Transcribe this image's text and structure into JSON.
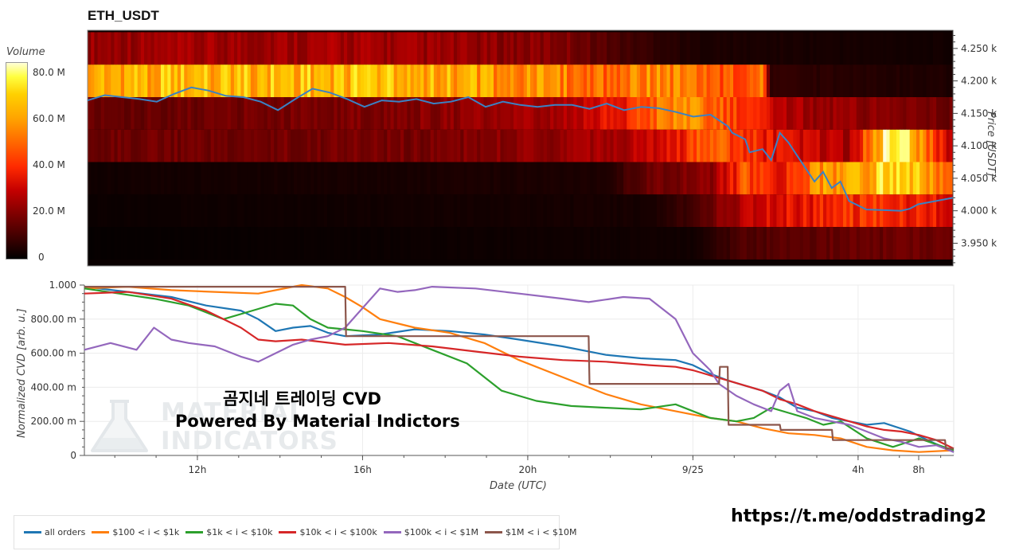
{
  "header": {
    "title": "ETH_USDT"
  },
  "colorbar": {
    "title": "Volume",
    "ticks": [
      {
        "label": "80.0 M",
        "value": 80
      },
      {
        "label": "60.0 M",
        "value": 60
      },
      {
        "label": "40.0 M",
        "value": 40
      },
      {
        "label": "20.0 M",
        "value": 20
      },
      {
        "label": "0",
        "value": 0
      }
    ]
  },
  "overlay": {
    "line1": "곰지네 트레이딩 CVD",
    "line2": "Powered By Material Indictors",
    "watermark1": "MATERIAL",
    "watermark2": "INDICATORS",
    "url": "https://t.me/oddstrading2"
  },
  "chart_data": [
    {
      "type": "heatmap",
      "title": "ETH_USDT",
      "ylabel": "Price [USDT]",
      "y_ticks": [
        "4.250 k",
        "4.200 k",
        "4.150 k",
        "4.100 k",
        "4.050 k",
        "4.000 k",
        "3.950 k"
      ],
      "y_tick_values": [
        4250,
        4200,
        4150,
        4100,
        4050,
        4000,
        3950
      ],
      "ylim": [
        3915,
        4278
      ],
      "price_bands": [
        {
          "low": 4225,
          "high": 4275,
          "intensity": [
            [
              0,
              0.28
            ],
            [
              0.3,
              0.3
            ],
            [
              0.55,
              0.24
            ],
            [
              0.62,
              0.12
            ],
            [
              0.7,
              0.05
            ],
            [
              1,
              0.03
            ]
          ]
        },
        {
          "low": 4175,
          "high": 4225,
          "intensity": [
            [
              0,
              0.78
            ],
            [
              0.35,
              0.82
            ],
            [
              0.5,
              0.7
            ],
            [
              0.6,
              0.62
            ],
            [
              0.65,
              0.7
            ],
            [
              0.75,
              0.55
            ],
            [
              0.78,
              0.62
            ],
            [
              0.79,
              0.08
            ],
            [
              1,
              0.05
            ]
          ]
        },
        {
          "low": 4125,
          "high": 4175,
          "intensity": [
            [
              0,
              0.18
            ],
            [
              0.4,
              0.25
            ],
            [
              0.55,
              0.3
            ],
            [
              0.62,
              0.45
            ],
            [
              0.68,
              0.7
            ],
            [
              0.72,
              0.6
            ],
            [
              0.78,
              0.4
            ],
            [
              0.82,
              0.3
            ],
            [
              1,
              0.2
            ]
          ]
        },
        {
          "low": 4075,
          "high": 4125,
          "intensity": [
            [
              0,
              0.2
            ],
            [
              0.4,
              0.22
            ],
            [
              0.62,
              0.3
            ],
            [
              0.68,
              0.42
            ],
            [
              0.72,
              0.6
            ],
            [
              0.76,
              0.5
            ],
            [
              0.8,
              0.4
            ],
            [
              0.88,
              0.3
            ],
            [
              0.92,
              0.9
            ],
            [
              0.95,
              0.86
            ],
            [
              1,
              0.3
            ]
          ]
        },
        {
          "low": 4025,
          "high": 4075,
          "intensity": [
            [
              0,
              0.03
            ],
            [
              0.6,
              0.05
            ],
            [
              0.65,
              0.2
            ],
            [
              0.72,
              0.25
            ],
            [
              0.76,
              0.55
            ],
            [
              0.8,
              0.4
            ],
            [
              0.85,
              0.72
            ],
            [
              0.9,
              0.76
            ],
            [
              0.93,
              0.92
            ],
            [
              0.96,
              0.82
            ],
            [
              1,
              0.5
            ]
          ]
        },
        {
          "low": 3975,
          "high": 4025,
          "intensity": [
            [
              0,
              0.02
            ],
            [
              0.65,
              0.04
            ],
            [
              0.7,
              0.12
            ],
            [
              0.76,
              0.35
            ],
            [
              0.8,
              0.4
            ],
            [
              0.85,
              0.45
            ],
            [
              0.9,
              0.5
            ],
            [
              0.95,
              0.45
            ],
            [
              1,
              0.4
            ]
          ]
        },
        {
          "low": 3925,
          "high": 3975,
          "intensity": [
            [
              0,
              0.01
            ],
            [
              0.7,
              0.03
            ],
            [
              0.76,
              0.14
            ],
            [
              0.85,
              0.18
            ],
            [
              0.95,
              0.2
            ],
            [
              1,
              0.18
            ]
          ]
        }
      ],
      "price_line": {
        "name": "price",
        "t": [
          0,
          0.02,
          0.04,
          0.06,
          0.08,
          0.1,
          0.12,
          0.14,
          0.16,
          0.18,
          0.2,
          0.22,
          0.24,
          0.26,
          0.28,
          0.3,
          0.32,
          0.34,
          0.36,
          0.38,
          0.4,
          0.42,
          0.44,
          0.46,
          0.48,
          0.5,
          0.52,
          0.54,
          0.56,
          0.58,
          0.6,
          0.62,
          0.64,
          0.66,
          0.68,
          0.7,
          0.72,
          0.74,
          0.745,
          0.76,
          0.765,
          0.78,
          0.79,
          0.8,
          0.81,
          0.82,
          0.83,
          0.84,
          0.85,
          0.86,
          0.87,
          0.88,
          0.9,
          0.92,
          0.94,
          0.95,
          0.96,
          0.98,
          1
        ],
        "price": [
          4170,
          4178,
          4175,
          4172,
          4168,
          4180,
          4190,
          4185,
          4177,
          4175,
          4168,
          4155,
          4172,
          4188,
          4182,
          4172,
          4160,
          4170,
          4168,
          4172,
          4165,
          4168,
          4175,
          4160,
          4168,
          4163,
          4160,
          4163,
          4163,
          4157,
          4165,
          4155,
          4160,
          4158,
          4152,
          4145,
          4148,
          4130,
          4120,
          4110,
          4090,
          4095,
          4078,
          4120,
          4105,
          4085,
          4065,
          4045,
          4060,
          4035,
          4045,
          4015,
          4002,
          4001,
          4000,
          4003,
          4010,
          4015,
          4020
        ]
      }
    },
    {
      "type": "line",
      "xlabel": "Date (UTC)",
      "ylabel": "Normalized CVD [arb. u.]",
      "ylim": [
        0,
        1
      ],
      "y_ticks": [
        "1.000",
        "800.00 m",
        "600.00 m",
        "400.00 m",
        "200.00 m",
        "0"
      ],
      "y_tick_values": [
        1,
        0.8,
        0.6,
        0.4,
        0.2,
        0
      ],
      "x_ticks": [
        "12h",
        "16h",
        "20h",
        "9/25",
        "4h",
        "8h"
      ],
      "x_tick_positions": [
        0.13,
        0.32,
        0.51,
        0.7,
        0.89,
        1.08
      ],
      "series": [
        {
          "name": "all orders",
          "color": "#1f77b4",
          "t": [
            0,
            0.05,
            0.1,
            0.14,
            0.18,
            0.2,
            0.22,
            0.24,
            0.26,
            0.28,
            0.3,
            0.34,
            0.38,
            0.42,
            0.46,
            0.5,
            0.55,
            0.6,
            0.64,
            0.68,
            0.7,
            0.72,
            0.74,
            0.76,
            0.78,
            0.8,
            0.82,
            0.84,
            0.86,
            0.88,
            0.9,
            0.92,
            0.95,
            0.97,
            1
          ],
          "y": [
            0.99,
            0.96,
            0.93,
            0.88,
            0.85,
            0.8,
            0.73,
            0.75,
            0.76,
            0.72,
            0.7,
            0.71,
            0.74,
            0.73,
            0.71,
            0.68,
            0.64,
            0.59,
            0.57,
            0.56,
            0.53,
            0.48,
            0.44,
            0.41,
            0.38,
            0.34,
            0.28,
            0.26,
            0.22,
            0.2,
            0.18,
            0.19,
            0.14,
            0.09,
            0.02
          ]
        },
        {
          "name": "$100 < i < $1k",
          "color": "#ff7f0e",
          "t": [
            0,
            0.05,
            0.1,
            0.15,
            0.2,
            0.25,
            0.28,
            0.3,
            0.32,
            0.34,
            0.38,
            0.42,
            0.46,
            0.5,
            0.55,
            0.6,
            0.64,
            0.68,
            0.72,
            0.75,
            0.78,
            0.81,
            0.84,
            0.87,
            0.9,
            0.93,
            0.96,
            1
          ],
          "y": [
            0.98,
            0.99,
            0.97,
            0.96,
            0.95,
            1.0,
            0.98,
            0.93,
            0.87,
            0.8,
            0.75,
            0.72,
            0.66,
            0.56,
            0.46,
            0.36,
            0.3,
            0.26,
            0.22,
            0.2,
            0.16,
            0.13,
            0.12,
            0.1,
            0.05,
            0.03,
            0.02,
            0.03
          ]
        },
        {
          "name": "$1k < i < $10k",
          "color": "#2ca02c",
          "t": [
            0,
            0.04,
            0.08,
            0.12,
            0.16,
            0.2,
            0.22,
            0.24,
            0.26,
            0.28,
            0.3,
            0.32,
            0.36,
            0.4,
            0.44,
            0.48,
            0.52,
            0.56,
            0.6,
            0.64,
            0.68,
            0.72,
            0.75,
            0.77,
            0.79,
            0.81,
            0.83,
            0.85,
            0.87,
            0.9,
            0.93,
            0.96,
            1
          ],
          "y": [
            0.98,
            0.95,
            0.92,
            0.88,
            0.8,
            0.86,
            0.89,
            0.88,
            0.8,
            0.75,
            0.74,
            0.73,
            0.7,
            0.62,
            0.54,
            0.38,
            0.32,
            0.29,
            0.28,
            0.27,
            0.3,
            0.22,
            0.2,
            0.22,
            0.28,
            0.25,
            0.22,
            0.18,
            0.2,
            0.1,
            0.05,
            0.1,
            0.03
          ]
        },
        {
          "name": "$10k < i < $100k",
          "color": "#d62728",
          "t": [
            0,
            0.05,
            0.1,
            0.14,
            0.18,
            0.2,
            0.22,
            0.25,
            0.3,
            0.35,
            0.4,
            0.45,
            0.5,
            0.55,
            0.6,
            0.65,
            0.68,
            0.7,
            0.72,
            0.74,
            0.76,
            0.78,
            0.8,
            0.82,
            0.84,
            0.86,
            0.88,
            0.9,
            0.92,
            0.94,
            0.96,
            0.98,
            1
          ],
          "y": [
            0.95,
            0.96,
            0.92,
            0.85,
            0.75,
            0.68,
            0.67,
            0.68,
            0.65,
            0.66,
            0.64,
            0.61,
            0.58,
            0.56,
            0.55,
            0.53,
            0.52,
            0.5,
            0.47,
            0.44,
            0.41,
            0.38,
            0.33,
            0.3,
            0.26,
            0.23,
            0.2,
            0.17,
            0.15,
            0.14,
            0.12,
            0.09,
            0.04
          ]
        },
        {
          "name": "$100k < i < $1M",
          "color": "#9467bd",
          "t": [
            0,
            0.03,
            0.06,
            0.08,
            0.1,
            0.12,
            0.15,
            0.18,
            0.2,
            0.22,
            0.24,
            0.26,
            0.28,
            0.3,
            0.34,
            0.36,
            0.38,
            0.4,
            0.45,
            0.5,
            0.55,
            0.58,
            0.62,
            0.65,
            0.68,
            0.7,
            0.72,
            0.73,
            0.75,
            0.77,
            0.79,
            0.8,
            0.81,
            0.82,
            0.84,
            0.86,
            0.88,
            0.9,
            0.92,
            0.94,
            0.96,
            0.98,
            1
          ],
          "y": [
            0.62,
            0.66,
            0.62,
            0.75,
            0.68,
            0.66,
            0.64,
            0.58,
            0.55,
            0.6,
            0.65,
            0.68,
            0.7,
            0.75,
            0.98,
            0.96,
            0.97,
            0.99,
            0.98,
            0.95,
            0.92,
            0.9,
            0.93,
            0.92,
            0.8,
            0.6,
            0.5,
            0.42,
            0.35,
            0.3,
            0.26,
            0.38,
            0.42,
            0.26,
            0.22,
            0.2,
            0.18,
            0.14,
            0.1,
            0.08,
            0.05,
            0.06,
            0.02
          ]
        },
        {
          "name": "$1M < i < $10M",
          "color": "#8c564b",
          "t": [
            0,
            0.3,
            0.301,
            0.58,
            0.581,
            0.73,
            0.731,
            0.74,
            0.741,
            0.8,
            0.801,
            0.86,
            0.861,
            0.99,
            0.991,
            1
          ],
          "y": [
            0.99,
            0.99,
            0.7,
            0.7,
            0.42,
            0.42,
            0.52,
            0.52,
            0.18,
            0.18,
            0.15,
            0.15,
            0.09,
            0.09,
            0.04,
            0.04
          ]
        }
      ]
    }
  ],
  "legend": {
    "items": [
      {
        "label": "all orders",
        "color": "#1f77b4"
      },
      {
        "label": "$100 < i < $1k",
        "color": "#ff7f0e"
      },
      {
        "label": "$1k < i < $10k",
        "color": "#2ca02c"
      },
      {
        "label": "$10k < i < $100k",
        "color": "#d62728"
      },
      {
        "label": "$100k < i < $1M",
        "color": "#9467bd"
      },
      {
        "label": "$1M < i < $10M",
        "color": "#8c564b"
      }
    ]
  }
}
